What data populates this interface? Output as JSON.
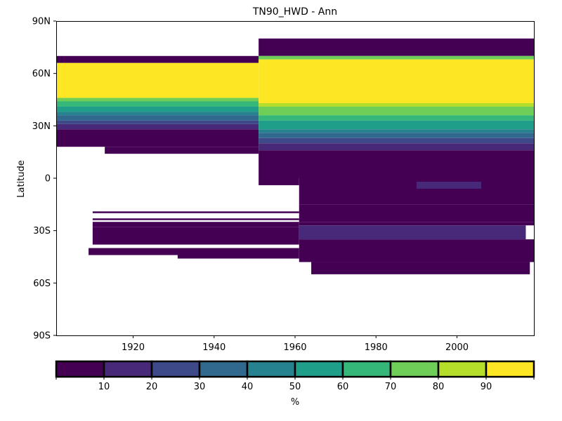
{
  "chart_data": {
    "type": "heatmap",
    "title": "TN90_HWD - Ann",
    "xlabel": "",
    "ylabel": "Latitude",
    "xlim": [
      1901,
      2019
    ],
    "ylim": [
      -90,
      90
    ],
    "x_ticks": [
      {
        "value": 1920,
        "label": "1920"
      },
      {
        "value": 1940,
        "label": "1940"
      },
      {
        "value": 1960,
        "label": "1960"
      },
      {
        "value": 1980,
        "label": "1980"
      },
      {
        "value": 2000,
        "label": "2000"
      }
    ],
    "y_ticks": [
      {
        "value": 90,
        "label": "90N"
      },
      {
        "value": 60,
        "label": "60N"
      },
      {
        "value": 30,
        "label": "30N"
      },
      {
        "value": 0,
        "label": "0"
      },
      {
        "value": -30,
        "label": "30S"
      },
      {
        "value": -60,
        "label": "60S"
      },
      {
        "value": -90,
        "label": "90S"
      }
    ],
    "colorbar": {
      "label": "%",
      "range": [
        0,
        100
      ],
      "bounds": [
        0,
        10,
        20,
        30,
        40,
        50,
        60,
        70,
        80,
        90,
        100
      ],
      "tick_labels": [
        "10",
        "20",
        "30",
        "40",
        "50",
        "60",
        "70",
        "80",
        "90"
      ],
      "colors": [
        "#440154",
        "#482878",
        "#3e4989",
        "#31688e",
        "#26828e",
        "#1f9e89",
        "#35b779",
        "#6ece58",
        "#b5de2b",
        "#fde725"
      ]
    },
    "cells": [
      {
        "x0": 1901,
        "x1": 1951,
        "y0": 66,
        "y1": 70,
        "value": 5
      },
      {
        "x0": 1901,
        "x1": 1951,
        "y0": 46,
        "y1": 66,
        "value": 95
      },
      {
        "x0": 1901,
        "x1": 1951,
        "y0": 44,
        "y1": 46,
        "value": 75
      },
      {
        "x0": 1901,
        "x1": 1951,
        "y0": 41,
        "y1": 44,
        "value": 65
      },
      {
        "x0": 1901,
        "x1": 1951,
        "y0": 38,
        "y1": 41,
        "value": 55
      },
      {
        "x0": 1901,
        "x1": 1951,
        "y0": 36,
        "y1": 38,
        "value": 45
      },
      {
        "x0": 1901,
        "x1": 1951,
        "y0": 33,
        "y1": 36,
        "value": 35
      },
      {
        "x0": 1901,
        "x1": 1951,
        "y0": 31,
        "y1": 33,
        "value": 25
      },
      {
        "x0": 1901,
        "x1": 1951,
        "y0": 28,
        "y1": 31,
        "value": 15
      },
      {
        "x0": 1901,
        "x1": 1951,
        "y0": 18,
        "y1": 28,
        "value": 5
      },
      {
        "x0": 1913,
        "x1": 1951,
        "y0": 14,
        "y1": 18,
        "value": 5
      },
      {
        "x0": 1951,
        "x1": 2019,
        "y0": 70,
        "y1": 80,
        "value": 5
      },
      {
        "x0": 1951,
        "x1": 2019,
        "y0": 68,
        "y1": 70,
        "value": 75
      },
      {
        "x0": 1951,
        "x1": 2019,
        "y0": 43,
        "y1": 68,
        "value": 95
      },
      {
        "x0": 1951,
        "x1": 2019,
        "y0": 41,
        "y1": 43,
        "value": 85
      },
      {
        "x0": 1951,
        "x1": 2019,
        "y0": 36,
        "y1": 41,
        "value": 75
      },
      {
        "x0": 1951,
        "x1": 2019,
        "y0": 33,
        "y1": 36,
        "value": 65
      },
      {
        "x0": 1951,
        "x1": 2019,
        "y0": 28,
        "y1": 33,
        "value": 55
      },
      {
        "x0": 1951,
        "x1": 2019,
        "y0": 26,
        "y1": 28,
        "value": 45
      },
      {
        "x0": 1951,
        "x1": 2019,
        "y0": 23,
        "y1": 26,
        "value": 35
      },
      {
        "x0": 1951,
        "x1": 2019,
        "y0": 20,
        "y1": 23,
        "value": 25
      },
      {
        "x0": 1951,
        "x1": 2019,
        "y0": 16,
        "y1": 20,
        "value": 15
      },
      {
        "x0": 1951,
        "x1": 2019,
        "y0": 0,
        "y1": 16,
        "value": 5
      },
      {
        "x0": 1951,
        "x1": 1961,
        "y0": -4,
        "y1": 0,
        "value": 5
      },
      {
        "x0": 1961,
        "x1": 2019,
        "y0": -15,
        "y1": 0,
        "value": 5
      },
      {
        "x0": 1990,
        "x1": 2006,
        "y0": -6,
        "y1": -2,
        "value": 15
      },
      {
        "x0": 1961,
        "x1": 2019,
        "y0": -25,
        "y1": -15,
        "value": 5
      },
      {
        "x0": 1910,
        "x1": 1961,
        "y0": -20,
        "y1": -19,
        "value": 5
      },
      {
        "x0": 1910,
        "x1": 1961,
        "y0": -24,
        "y1": -23,
        "value": 5
      },
      {
        "x0": 1910,
        "x1": 1961,
        "y0": -28,
        "y1": -25,
        "value": 5
      },
      {
        "x0": 1910,
        "x1": 1961,
        "y0": -38,
        "y1": -28,
        "value": 5
      },
      {
        "x0": 1909,
        "x1": 1961,
        "y0": -44,
        "y1": -40,
        "value": 5
      },
      {
        "x0": 1931,
        "x1": 1961,
        "y0": -46,
        "y1": -44,
        "value": 5
      },
      {
        "x0": 1961,
        "x1": 2019,
        "y0": -27,
        "y1": -25,
        "value": 5
      },
      {
        "x0": 1961,
        "x1": 2017,
        "y0": -35,
        "y1": -27,
        "value": 15
      },
      {
        "x0": 1961,
        "x1": 2019,
        "y0": -48,
        "y1": -35,
        "value": 5
      },
      {
        "x0": 1964,
        "x1": 2018,
        "y0": -55,
        "y1": -48,
        "value": 5
      }
    ]
  }
}
